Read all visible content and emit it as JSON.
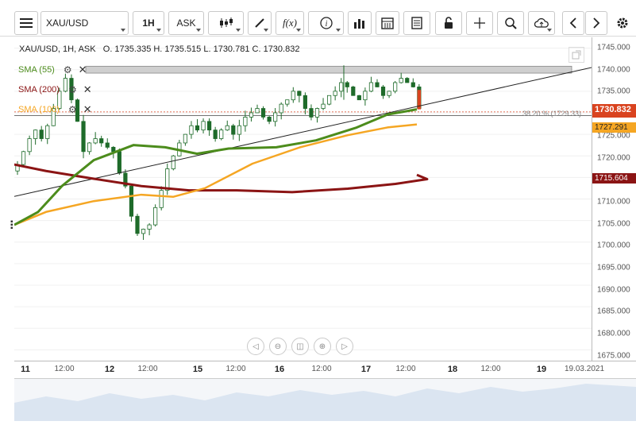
{
  "toolbar": {
    "symbol": "XAU/USD",
    "timeframe": "1H",
    "price_type": "ASK",
    "icons": [
      "menu-icon",
      "candlestick-icon",
      "draw-icon",
      "function-icon",
      "info-icon",
      "bar-chart-icon",
      "calendar-icon",
      "document-icon",
      "lock-icon",
      "crosshair-icon",
      "zoom-icon",
      "cloud-upload-icon",
      "chevron-left-icon",
      "chevron-right-icon",
      "gear-icon"
    ],
    "function_label": "f(x)"
  },
  "chart": {
    "info_line": "XAU/USD, 1H, ASK   O. 1735.335 H. 1735.515 L. 1730.781 C. 1730.832",
    "indicators": [
      {
        "label": "SMA (55)",
        "color": "#4c8c1c"
      },
      {
        "label": "SMA (200)",
        "color": "#8b1414"
      },
      {
        "label": "SMA (100)",
        "color": "#f5a623"
      }
    ],
    "fib_label": "38.20 % (1729.33)",
    "price_tags": [
      {
        "value": "1730.832",
        "color": "#d9431f"
      },
      {
        "value": "1727.291",
        "color": "#f5a623"
      },
      {
        "value": "1715.604",
        "color": "#8b1414"
      }
    ],
    "price_axis_labels": [
      "1745.000",
      "1740.000",
      "1735.000",
      "1730.000",
      "1725.000",
      "1720.000",
      "1715.000",
      "1710.000",
      "1705.000",
      "1700.000",
      "1695.000",
      "1690.000",
      "1685.000",
      "1680.000",
      "1675.000"
    ],
    "date_axis_labels": [
      {
        "text": "11",
        "major": true
      },
      {
        "text": "12:00",
        "major": false
      },
      {
        "text": "12",
        "major": true
      },
      {
        "text": "12:00",
        "major": false
      },
      {
        "text": "15",
        "major": true
      },
      {
        "text": "12:00",
        "major": false
      },
      {
        "text": "16",
        "major": true
      },
      {
        "text": "12:00",
        "major": false
      },
      {
        "text": "17",
        "major": true
      },
      {
        "text": "12:00",
        "major": false
      },
      {
        "text": "18",
        "major": true
      },
      {
        "text": "12:00",
        "major": false
      },
      {
        "text": "19",
        "major": true
      },
      {
        "text": "19.03.2021",
        "major": false
      }
    ]
  },
  "chart_data": {
    "type": "candlestick",
    "symbol": "XAU/USD",
    "ylim": [
      1675,
      1745
    ],
    "last_close": 1730.832,
    "sma_55_last": 1730.8,
    "sma_100_last": 1727.291,
    "sma_200_last": 1715.604,
    "closes": [
      1718,
      1721,
      1724,
      1726,
      1724,
      1727,
      1731,
      1735,
      1738,
      1733,
      1728,
      1721,
      1723,
      1724,
      1723,
      1722,
      1721,
      1716,
      1713,
      1706,
      1702,
      1703,
      1704,
      1708,
      1712,
      1717,
      1720,
      1723,
      1725,
      1727,
      1726,
      1728,
      1726,
      1724,
      1726,
      1727,
      1725,
      1727,
      1729,
      1730,
      1731,
      1729,
      1728,
      1730,
      1732,
      1733,
      1735,
      1734,
      1731,
      1729,
      1731,
      1732,
      1734,
      1735,
      1737,
      1736,
      1734,
      1733,
      1735,
      1737,
      1736,
      1734,
      1735,
      1737,
      1738,
      1737,
      1736,
      1731
    ]
  }
}
